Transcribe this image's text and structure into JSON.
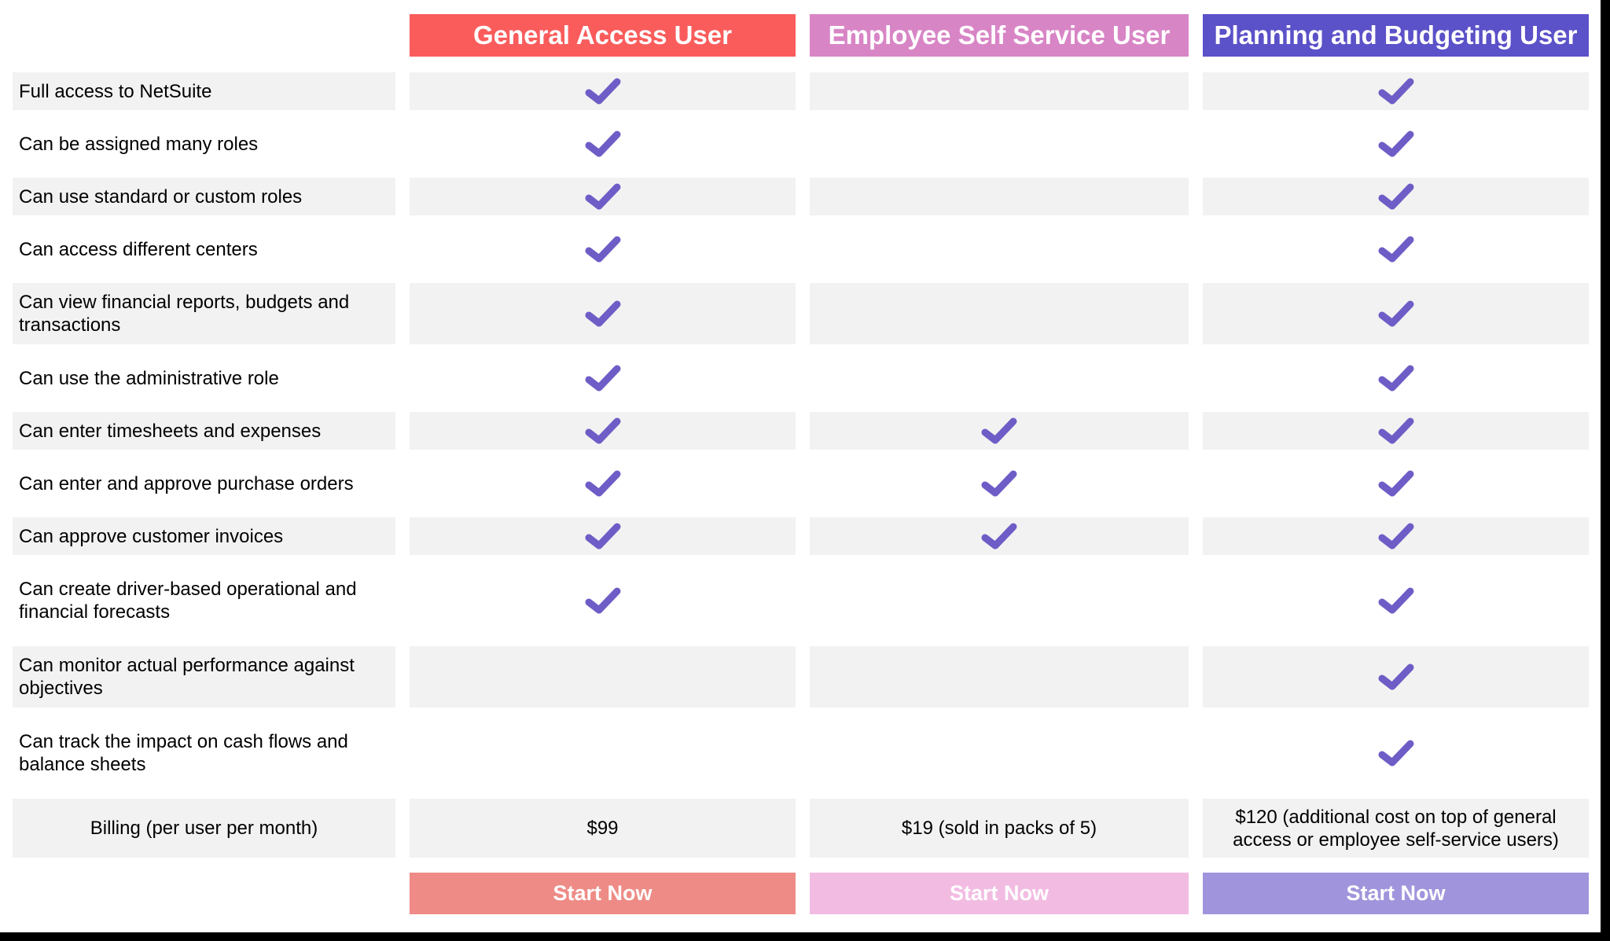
{
  "table": {
    "columns": [
      {
        "label": "General Access User",
        "header_bg": "#fa5c5c",
        "button_bg": "#ee8b86"
      },
      {
        "label": "Employee Self Service User",
        "header_bg": "#d885c6",
        "button_bg": "#f2bce2"
      },
      {
        "label": "Planning and Budgeting User",
        "header_bg": "#5b51c8",
        "button_bg": "#a095dc"
      }
    ],
    "rows": [
      {
        "label": "Full access to NetSuite",
        "two_line": false,
        "checks": [
          true,
          false,
          true
        ]
      },
      {
        "label": "Can be assigned many roles",
        "two_line": false,
        "checks": [
          true,
          false,
          true
        ]
      },
      {
        "label": "Can use standard or custom roles",
        "two_line": false,
        "checks": [
          true,
          false,
          true
        ]
      },
      {
        "label": "Can access different centers",
        "two_line": false,
        "checks": [
          true,
          false,
          true
        ]
      },
      {
        "label": "Can view financial reports, budgets and transactions",
        "two_line": true,
        "checks": [
          true,
          false,
          true
        ]
      },
      {
        "label": "Can use the administrative role",
        "two_line": false,
        "checks": [
          true,
          false,
          true
        ]
      },
      {
        "label": "Can enter timesheets and expenses",
        "two_line": false,
        "checks": [
          true,
          true,
          true
        ]
      },
      {
        "label": "Can enter and approve purchase orders",
        "two_line": false,
        "checks": [
          true,
          true,
          true
        ]
      },
      {
        "label": "Can approve customer invoices",
        "two_line": false,
        "checks": [
          true,
          true,
          true
        ]
      },
      {
        "label": "Can create driver-based operational and financial forecasts",
        "two_line": true,
        "checks": [
          true,
          false,
          true
        ]
      },
      {
        "label": "Can monitor actual performance against objectives",
        "two_line": true,
        "checks": [
          false,
          false,
          true
        ]
      },
      {
        "label": "Can track the impact on cash flows and balance sheets",
        "two_line": true,
        "checks": [
          false,
          false,
          true
        ]
      }
    ],
    "billing": {
      "label": "Billing (per user per month)",
      "values": [
        "$99",
        "$19 (sold in packs of 5)",
        "$120 (additional cost on top of general access or employee self-service users)"
      ]
    },
    "button_label": "Start Now",
    "colors": {
      "check": "#6e5dc6",
      "row_stripe": "#f2f2f2",
      "edge": "#000000"
    }
  }
}
